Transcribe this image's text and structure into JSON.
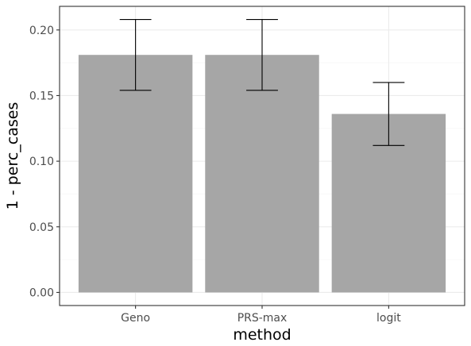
{
  "chart_data": {
    "type": "bar",
    "title": "",
    "xlabel": "method",
    "ylabel": "1 - perc_cases",
    "categories": [
      "Geno",
      "PRS-max",
      "logit"
    ],
    "values": [
      0.181,
      0.181,
      0.136
    ],
    "error_lower": [
      0.154,
      0.154,
      0.112
    ],
    "error_upper": [
      0.208,
      0.208,
      0.16
    ],
    "ylim": [
      -0.01,
      0.218
    ],
    "yticks": [
      0.0,
      0.05,
      0.1,
      0.15,
      0.2
    ],
    "ytick_labels": [
      "0.00",
      "0.05",
      "0.10",
      "0.15",
      "0.20"
    ],
    "grid": true,
    "legend": "none",
    "theme": "bw",
    "colors": {
      "bar": "#a6a6a6",
      "error_bar": "#000000",
      "grid_major": "#ebebeb",
      "grid_minor": "#f5f5f5",
      "panel_border": "#333333",
      "tick_text": "#4d4d4d",
      "axis_title": "#000000"
    }
  }
}
